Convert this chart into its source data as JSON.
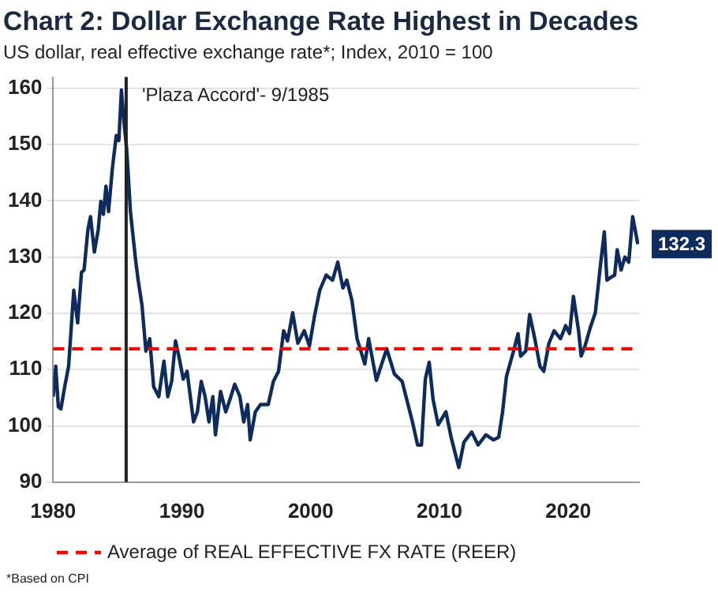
{
  "chart_data": {
    "type": "line",
    "title": "Chart 2: Dollar Exchange Rate Highest in Decades",
    "subtitle": "US dollar, real effective exchange rate*; Index, 2010 = 100",
    "x": [
      1980.0,
      1980.2,
      1980.4,
      1980.6,
      1980.9,
      1981.2,
      1981.6,
      1981.9,
      1982.2,
      1982.4,
      1982.7,
      1982.9,
      1983.2,
      1983.5,
      1983.7,
      1983.9,
      1984.1,
      1984.3,
      1984.6,
      1984.9,
      1985.1,
      1985.3,
      1985.5,
      1985.7,
      1985.8,
      1986.0,
      1986.4,
      1986.6,
      1986.9,
      1987.2,
      1987.5,
      1987.8,
      1988.2,
      1988.6,
      1988.9,
      1989.2,
      1989.5,
      1989.8,
      1990.1,
      1990.4,
      1990.9,
      1991.2,
      1991.5,
      1991.8,
      1992.1,
      1992.4,
      1992.6,
      1993.0,
      1993.4,
      1993.8,
      1994.1,
      1994.5,
      1994.8,
      1995.1,
      1995.3,
      1995.7,
      1996.1,
      1996.7,
      1997.1,
      1997.5,
      1997.9,
      1998.2,
      1998.6,
      1999.0,
      1999.5,
      1999.9,
      2000.3,
      2000.7,
      2001.2,
      2001.7,
      2002.1,
      2002.5,
      2002.8,
      2003.2,
      2003.6,
      2004.2,
      2004.5,
      2005.1,
      2005.9,
      2006.5,
      2007.1,
      2007.9,
      2008.3,
      2008.6,
      2008.9,
      2009.2,
      2009.5,
      2009.9,
      2010.5,
      2010.9,
      2011.1,
      2011.5,
      2011.9,
      2012.5,
      2013.0,
      2013.6,
      2014.2,
      2014.6,
      2014.9,
      2015.2,
      2015.8,
      2016.1,
      2016.3,
      2016.7,
      2017.0,
      2017.4,
      2017.8,
      2018.1,
      2018.5,
      2018.9,
      2019.4,
      2019.8,
      2020.1,
      2020.4,
      2020.8,
      2021.0,
      2021.3,
      2021.7,
      2022.1,
      2022.5,
      2022.8,
      2023.0,
      2023.3,
      2023.6,
      2023.8,
      2024.1,
      2024.4,
      2024.7,
      2025.0,
      2025.4
    ],
    "series": [
      {
        "color": "#0d2b5c",
        "values": [
          105.2,
          110.6,
          103.4,
          103,
          107,
          110.6,
          124.1,
          118.3,
          127.3,
          127.7,
          134.9,
          137.2,
          130.9,
          134.9,
          139.9,
          137.6,
          142.6,
          138.1,
          145.8,
          151.6,
          150.7,
          159.7,
          153.9,
          149.4,
          145.8,
          138.1,
          129.5,
          125.9,
          121.4,
          113.3,
          115.5,
          107,
          105.2,
          111.5,
          105.2,
          107.9,
          115.1,
          111.9,
          108.3,
          109.7,
          100.7,
          102.5,
          107.9,
          105.2,
          100.7,
          105.2,
          98.4,
          106.1,
          102.5,
          105.2,
          107.4,
          105.2,
          100.7,
          103.8,
          97.5,
          102.5,
          103.8,
          103.8,
          107.9,
          109.7,
          116.9,
          115.1,
          120.1,
          114.7,
          116.9,
          114.2,
          119.6,
          124.1,
          126.8,
          125.9,
          129.1,
          124.5,
          125.9,
          122.3,
          115.5,
          111,
          115.5,
          108.1,
          113.7,
          109.2,
          107.9,
          100.7,
          96.6,
          96.6,
          108.3,
          111.3,
          104.7,
          100.2,
          102.5,
          98,
          96.2,
          92.6,
          97.1,
          98.9,
          96.6,
          98.4,
          97.5,
          98,
          102.5,
          108.8,
          113.7,
          116.4,
          112.4,
          113.3,
          119.8,
          115.5,
          110.6,
          109.7,
          114.7,
          116.9,
          115.5,
          117.8,
          116.4,
          123,
          116.9,
          112.4,
          114.2,
          117.4,
          120.1,
          128.6,
          134.5,
          125.9,
          126.4,
          126.8,
          131.3,
          127.7,
          130,
          129.1,
          137.2,
          132.3
        ],
        "value_labels": [
          null,
          null,
          null,
          null,
          null,
          null,
          null,
          null,
          null,
          null,
          null,
          null,
          null,
          null,
          null,
          null,
          null,
          null,
          null,
          null,
          null,
          null,
          null,
          null,
          null,
          null,
          null,
          null,
          null,
          null,
          null,
          null,
          null,
          null,
          null,
          null,
          null,
          null,
          null,
          null,
          null,
          null,
          null,
          null,
          null,
          null,
          null,
          null,
          null,
          null,
          null,
          null,
          null,
          null,
          null,
          null,
          null,
          null,
          null,
          null,
          null,
          null,
          null,
          null,
          null,
          null,
          null,
          null,
          null,
          null,
          null,
          null,
          null,
          null,
          null,
          null,
          null,
          null,
          null,
          null,
          null,
          null,
          null,
          null,
          null,
          null,
          null,
          null,
          null,
          null,
          null,
          null,
          null,
          null,
          null,
          null,
          null,
          null,
          null,
          null,
          null,
          null,
          null,
          null,
          null,
          null,
          null,
          null,
          null,
          null,
          null,
          null,
          null,
          null,
          null,
          null,
          null,
          null,
          null,
          null,
          null,
          null,
          null,
          null,
          null,
          null,
          null,
          null,
          null,
          "132.3"
        ]
      }
    ],
    "xlim": [
      1980,
      2025.5
    ],
    "xticks": [
      1980,
      1990,
      2000,
      2010,
      2020
    ],
    "ylim": [
      90,
      162
    ],
    "yticks": [
      90,
      100,
      110,
      120,
      130,
      140,
      150,
      160
    ],
    "grid": "y",
    "ref_lines": [
      {
        "axis": "y",
        "value": 113.7,
        "label": "Average of REAL EFFECTIVE FX RATE (REER)",
        "color": "#ff0000",
        "line_style": "dashed"
      },
      {
        "axis": "x",
        "value": 1985.67,
        "label": "'Plaza Accord'- 9/1985",
        "color": "#222222",
        "line_style": "solid"
      }
    ],
    "annotations": [
      "*Based on CPI"
    ]
  }
}
